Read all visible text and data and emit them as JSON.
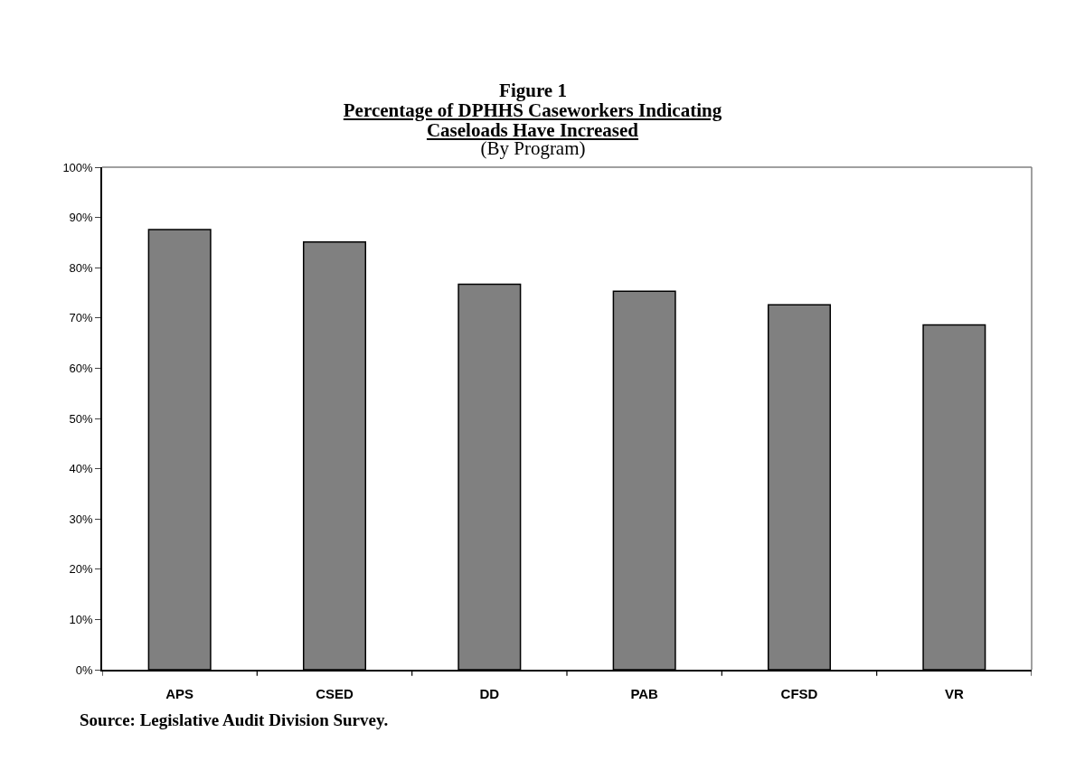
{
  "chart_data": {
    "type": "bar",
    "title": "Percentage of DPHHS Caseworkers Indicating Caseloads Have Increased",
    "subtitle": "(By Program)",
    "annotations": [
      "Figure 1",
      "Source:  Legislative Audit Division Survey."
    ],
    "categories": [
      "APS",
      "CSED",
      "DD",
      "PAB",
      "CFSD",
      "VR"
    ],
    "values": [
      87.6,
      85.1,
      76.7,
      75.3,
      72.6,
      68.6
    ],
    "color": "#808080",
    "ylim": [
      0,
      100
    ],
    "yticks": [
      {
        "value": 0,
        "label": "0%"
      },
      {
        "value": 10,
        "label": "10%"
      },
      {
        "value": 20,
        "label": "20%"
      },
      {
        "value": 30,
        "label": "30%"
      },
      {
        "value": 40,
        "label": "40%"
      },
      {
        "value": 50,
        "label": "50%"
      },
      {
        "value": 60,
        "label": "60%"
      },
      {
        "value": 70,
        "label": "70%"
      },
      {
        "value": 80,
        "label": "80%"
      },
      {
        "value": 90,
        "label": "90%"
      },
      {
        "value": 100,
        "label": "100%"
      }
    ],
    "grid": false,
    "legend": false
  }
}
